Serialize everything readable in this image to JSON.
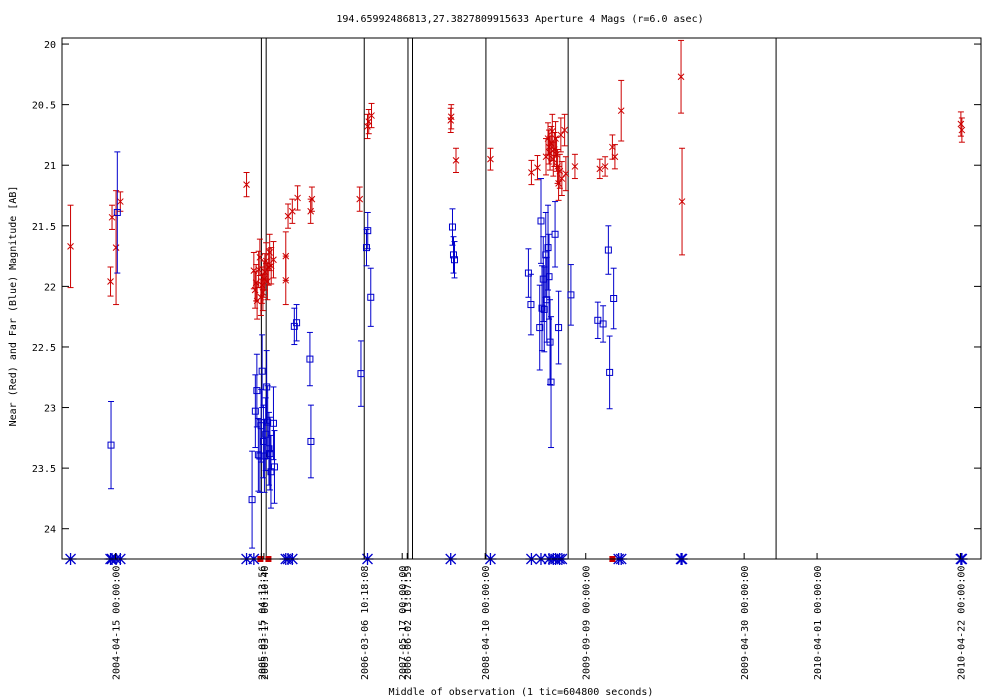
{
  "chart_data": {
    "type": "scatter",
    "title": "194.65992486813,27.3827809915633   Aperture 4 Mags (r=6.0 asec)",
    "xlabel": "Middle of observation (1 tic=604800 seconds)",
    "ylabel": "Near (Red) and Far (Blue) Magnitude [AB]",
    "y_inverted": true,
    "ylim": [
      24.25,
      19.95
    ],
    "xlim_week": [
      -21.3,
      344.2
    ],
    "grid": false,
    "y_ticks": [
      {
        "v": 20,
        "label": "20"
      },
      {
        "v": 20.5,
        "label": "20.5"
      },
      {
        "v": 21,
        "label": "21"
      },
      {
        "v": 21.5,
        "label": "21.5"
      },
      {
        "v": 22,
        "label": "22"
      },
      {
        "v": 22.5,
        "label": "22.5"
      },
      {
        "v": 23,
        "label": "23"
      },
      {
        "v": 23.5,
        "label": "23.5"
      },
      {
        "v": 24,
        "label": "24"
      }
    ],
    "x_ticks": [
      {
        "week": 0,
        "label": "2004-04-15 00:00:00"
      },
      {
        "week": 58,
        "label": "2005-03-15 04:13:56"
      },
      {
        "week": 59,
        "label": "2005-03-17 00:10:40"
      },
      {
        "week": 98.9,
        "label": "2006-03-06 10:18:08"
      },
      {
        "week": 114,
        "label": "2007-05-17 00:00:00"
      },
      {
        "week": 116,
        "label": "2006-06-02 13:07:59"
      },
      {
        "week": 147,
        "label": "2008-04-10 00:00:00"
      },
      {
        "week": 187,
        "label": "2009-09-09 00:00:00"
      },
      {
        "week": 250,
        "label": "2009-04-30 00:00:00"
      },
      {
        "week": 279,
        "label": "2010-04-01 00:00:00"
      },
      {
        "week": 336,
        "label": "2010-04-22 00:00:00"
      }
    ],
    "vertical_lines_week": [
      58,
      59.9,
      98.9,
      116.3,
      118.1,
      147.3,
      180,
      262.7
    ],
    "series": [
      {
        "color": "#cc0000",
        "marker": "x",
        "points": [
          [
            -17.9,
            21.67,
            21.33,
            22.01
          ],
          [
            -2,
            21.96,
            21.84,
            22.08
          ],
          [
            0.2,
            21.68,
            21.21,
            22.15
          ],
          [
            1.9,
            21.3,
            21.22,
            21.38
          ],
          [
            -1.4,
            21.43,
            21.33,
            21.53
          ],
          [
            52.1,
            21.16,
            21.06,
            21.26
          ],
          [
            55,
            21.87,
            21.72,
            22.02
          ],
          [
            55.5,
            22.03,
            21.88,
            22.18
          ],
          [
            55.9,
            21.97,
            21.82,
            22.12
          ],
          [
            56.3,
            22.12,
            21.97,
            22.27
          ],
          [
            56.9,
            21.86,
            21.71,
            22.01
          ],
          [
            57.4,
            21.76,
            21.61,
            21.91
          ],
          [
            57.8,
            22.09,
            21.94,
            22.24
          ],
          [
            58.2,
            21.99,
            21.84,
            22.14
          ],
          [
            58.6,
            22.05,
            21.9,
            22.2
          ],
          [
            59,
            21.94,
            21.79,
            22.09
          ],
          [
            59.4,
            21.88,
            21.73,
            22.03
          ],
          [
            59.9,
            21.79,
            21.64,
            21.94
          ],
          [
            60.4,
            21.96,
            21.81,
            22.11
          ],
          [
            60.9,
            21.84,
            21.69,
            21.99
          ],
          [
            61.3,
            21.72,
            21.57,
            21.87
          ],
          [
            61.9,
            21.83,
            21.68,
            21.98
          ],
          [
            62.8,
            21.78,
            21.63,
            21.93
          ],
          [
            67.7,
            21.75,
            21.55,
            21.95
          ],
          [
            67.7,
            21.95,
            21.75,
            22.15
          ],
          [
            68.6,
            21.42,
            21.32,
            21.52
          ],
          [
            70.3,
            21.38,
            21.28,
            21.48
          ],
          [
            72.4,
            21.27,
            21.17,
            21.37
          ],
          [
            77.6,
            21.38,
            21.28,
            21.48
          ],
          [
            78.1,
            21.28,
            21.18,
            21.38
          ],
          [
            97.1,
            21.28,
            21.18,
            21.38
          ],
          [
            100.2,
            20.68,
            20.58,
            20.78
          ],
          [
            100.7,
            20.64,
            20.54,
            20.74
          ],
          [
            101.8,
            20.59,
            20.49,
            20.69
          ],
          [
            133.3,
            20.63,
            20.53,
            20.73
          ],
          [
            133.5,
            20.6,
            20.5,
            20.7
          ],
          [
            135.4,
            20.96,
            20.86,
            21.06
          ],
          [
            149.1,
            20.95,
            20.86,
            21.04
          ],
          [
            165.4,
            21.06,
            20.96,
            21.16
          ],
          [
            167.8,
            21.02,
            20.92,
            21.12
          ],
          [
            171.2,
            20.93,
            20.78,
            21.08
          ],
          [
            172,
            20.78,
            20.65,
            20.91
          ],
          [
            172.4,
            20.85,
            20.71,
            20.99
          ],
          [
            172.8,
            20.9,
            20.76,
            21.04
          ],
          [
            173.3,
            20.82,
            20.68,
            20.96
          ],
          [
            173.7,
            20.72,
            20.58,
            20.86
          ],
          [
            174.1,
            20.95,
            20.81,
            21.09
          ],
          [
            174.5,
            20.87,
            20.73,
            21.01
          ],
          [
            175,
            20.78,
            20.64,
            20.92
          ],
          [
            175.4,
            20.91,
            20.77,
            21.05
          ],
          [
            175.8,
            21.01,
            20.87,
            21.15
          ],
          [
            176.2,
            21.15,
            21.01,
            21.29
          ],
          [
            176.7,
            21.05,
            20.91,
            21.19
          ],
          [
            177.1,
            20.75,
            20.61,
            20.89
          ],
          [
            177.5,
            21.11,
            20.97,
            21.25
          ],
          [
            178.6,
            20.71,
            20.58,
            20.84
          ],
          [
            179.1,
            21.07,
            20.93,
            21.21
          ],
          [
            182.7,
            21.01,
            20.91,
            21.11
          ],
          [
            192.6,
            21.03,
            20.95,
            21.11
          ],
          [
            194.7,
            21.01,
            20.93,
            21.09
          ],
          [
            197.6,
            20.85,
            20.75,
            20.95
          ],
          [
            198.6,
            20.93,
            20.83,
            21.03
          ],
          [
            201.1,
            20.55,
            20.3,
            20.8
          ],
          [
            224.9,
            20.27,
            19.97,
            20.57
          ],
          [
            225.3,
            21.3,
            20.86,
            21.74
          ],
          [
            336.2,
            20.66,
            20.56,
            20.76
          ],
          [
            336.6,
            20.71,
            20.61,
            20.81
          ]
        ]
      },
      {
        "color": "#0000cc",
        "marker": "square",
        "points": [
          [
            -1.8,
            23.31,
            22.95,
            23.67
          ],
          [
            0.7,
            21.39,
            20.89,
            21.89
          ],
          [
            54.3,
            23.76,
            23.36,
            24.16
          ],
          [
            55.6,
            23.03,
            22.73,
            23.33
          ],
          [
            56.2,
            22.86,
            22.56,
            23.16
          ],
          [
            56.8,
            23.39,
            23.09,
            23.69
          ],
          [
            57.4,
            23.4,
            23.1,
            23.7
          ],
          [
            57.9,
            23.15,
            22.85,
            23.45
          ],
          [
            58.3,
            22.7,
            22.4,
            23.0
          ],
          [
            58.8,
            23.28,
            22.98,
            23.58
          ],
          [
            59.2,
            23.4,
            23.1,
            23.7
          ],
          [
            59.7,
            23.22,
            22.92,
            23.52
          ],
          [
            60.1,
            22.83,
            22.53,
            23.13
          ],
          [
            60.5,
            23.12,
            22.82,
            23.42
          ],
          [
            61,
            23.34,
            23.04,
            23.64
          ],
          [
            61.4,
            23.38,
            23.08,
            23.68
          ],
          [
            61.8,
            23.53,
            23.23,
            23.83
          ],
          [
            62.8,
            23.13,
            22.83,
            23.43
          ],
          [
            63.2,
            23.49,
            23.19,
            23.79
          ],
          [
            71.1,
            22.33,
            22.18,
            22.48
          ],
          [
            72,
            22.3,
            22.15,
            22.45
          ],
          [
            77.3,
            22.6,
            22.38,
            22.82
          ],
          [
            77.7,
            23.28,
            22.98,
            23.58
          ],
          [
            97.6,
            22.72,
            22.45,
            22.99
          ],
          [
            99.8,
            21.68,
            21.53,
            21.83
          ],
          [
            100.3,
            21.54,
            21.39,
            21.69
          ],
          [
            101.5,
            22.09,
            21.85,
            22.33
          ],
          [
            134,
            21.51,
            21.36,
            21.66
          ],
          [
            134.4,
            21.74,
            21.59,
            21.89
          ],
          [
            134.8,
            21.78,
            21.63,
            21.93
          ],
          [
            164.2,
            21.89,
            21.69,
            22.09
          ],
          [
            165.2,
            22.15,
            21.9,
            22.4
          ],
          [
            168.7,
            22.34,
            21.99,
            22.69
          ],
          [
            169.2,
            21.46,
            21.11,
            21.81
          ],
          [
            169.6,
            22.18,
            21.83,
            22.53
          ],
          [
            170.1,
            21.94,
            21.59,
            22.29
          ],
          [
            170.5,
            22.19,
            21.84,
            22.54
          ],
          [
            171.1,
            21.74,
            21.39,
            22.09
          ],
          [
            171.5,
            22.11,
            21.76,
            22.46
          ],
          [
            172,
            21.68,
            21.33,
            22.03
          ],
          [
            172.4,
            21.92,
            21.57,
            22.27
          ],
          [
            172.8,
            22.46,
            22.11,
            22.81
          ],
          [
            173.2,
            22.79,
            22.25,
            23.33
          ],
          [
            174.8,
            21.57,
            21.3,
            21.84
          ],
          [
            176.2,
            22.34,
            22.04,
            22.64
          ],
          [
            181.1,
            22.07,
            21.82,
            22.32
          ],
          [
            191.8,
            22.28,
            22.13,
            22.43
          ],
          [
            193.9,
            22.31,
            22.16,
            22.46
          ],
          [
            196,
            21.7,
            21.5,
            21.9
          ],
          [
            196.5,
            22.71,
            22.41,
            23.01
          ],
          [
            198.1,
            22.1,
            21.85,
            22.35
          ]
        ]
      }
    ],
    "bottom_markers": [
      {
        "color": "#0000cc",
        "marker": "asterisk",
        "weeks": [
          -17.9,
          -2,
          -1.4,
          0.2,
          1.9,
          52.1,
          55,
          67.7,
          68.6,
          70.3,
          100.2,
          133.3,
          149.1,
          165.4,
          169.2,
          172.4,
          174.1,
          175,
          176.6,
          177.5,
          200.1,
          201.1,
          224.9,
          225.3,
          336.2,
          336.6
        ]
      },
      {
        "color": "#cc0000",
        "marker": "square",
        "weeks": [
          57.6,
          60.8,
          197.6
        ]
      }
    ]
  }
}
